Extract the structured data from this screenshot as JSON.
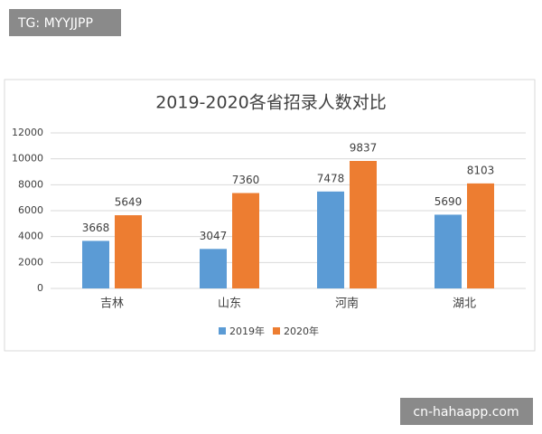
{
  "watermarks": [
    "TG: MYYJJPP",
    "cn-hahaapp.com"
  ],
  "chart_data": {
    "type": "bar",
    "title": "2019-2020各省招录人数对比",
    "categories": [
      "吉林",
      "山东",
      "河南",
      "湖北"
    ],
    "series": [
      {
        "name": "2019年",
        "color": "#5b9bd5",
        "values": [
          3668,
          3047,
          7478,
          5690
        ]
      },
      {
        "name": "2020年",
        "color": "#ed7d31",
        "values": [
          5649,
          7360,
          9837,
          8103
        ]
      }
    ],
    "ylim": [
      0,
      12000
    ],
    "yticks": [
      0,
      2000,
      4000,
      6000,
      8000,
      10000,
      12000
    ],
    "grid": true,
    "legend": "bottom"
  }
}
